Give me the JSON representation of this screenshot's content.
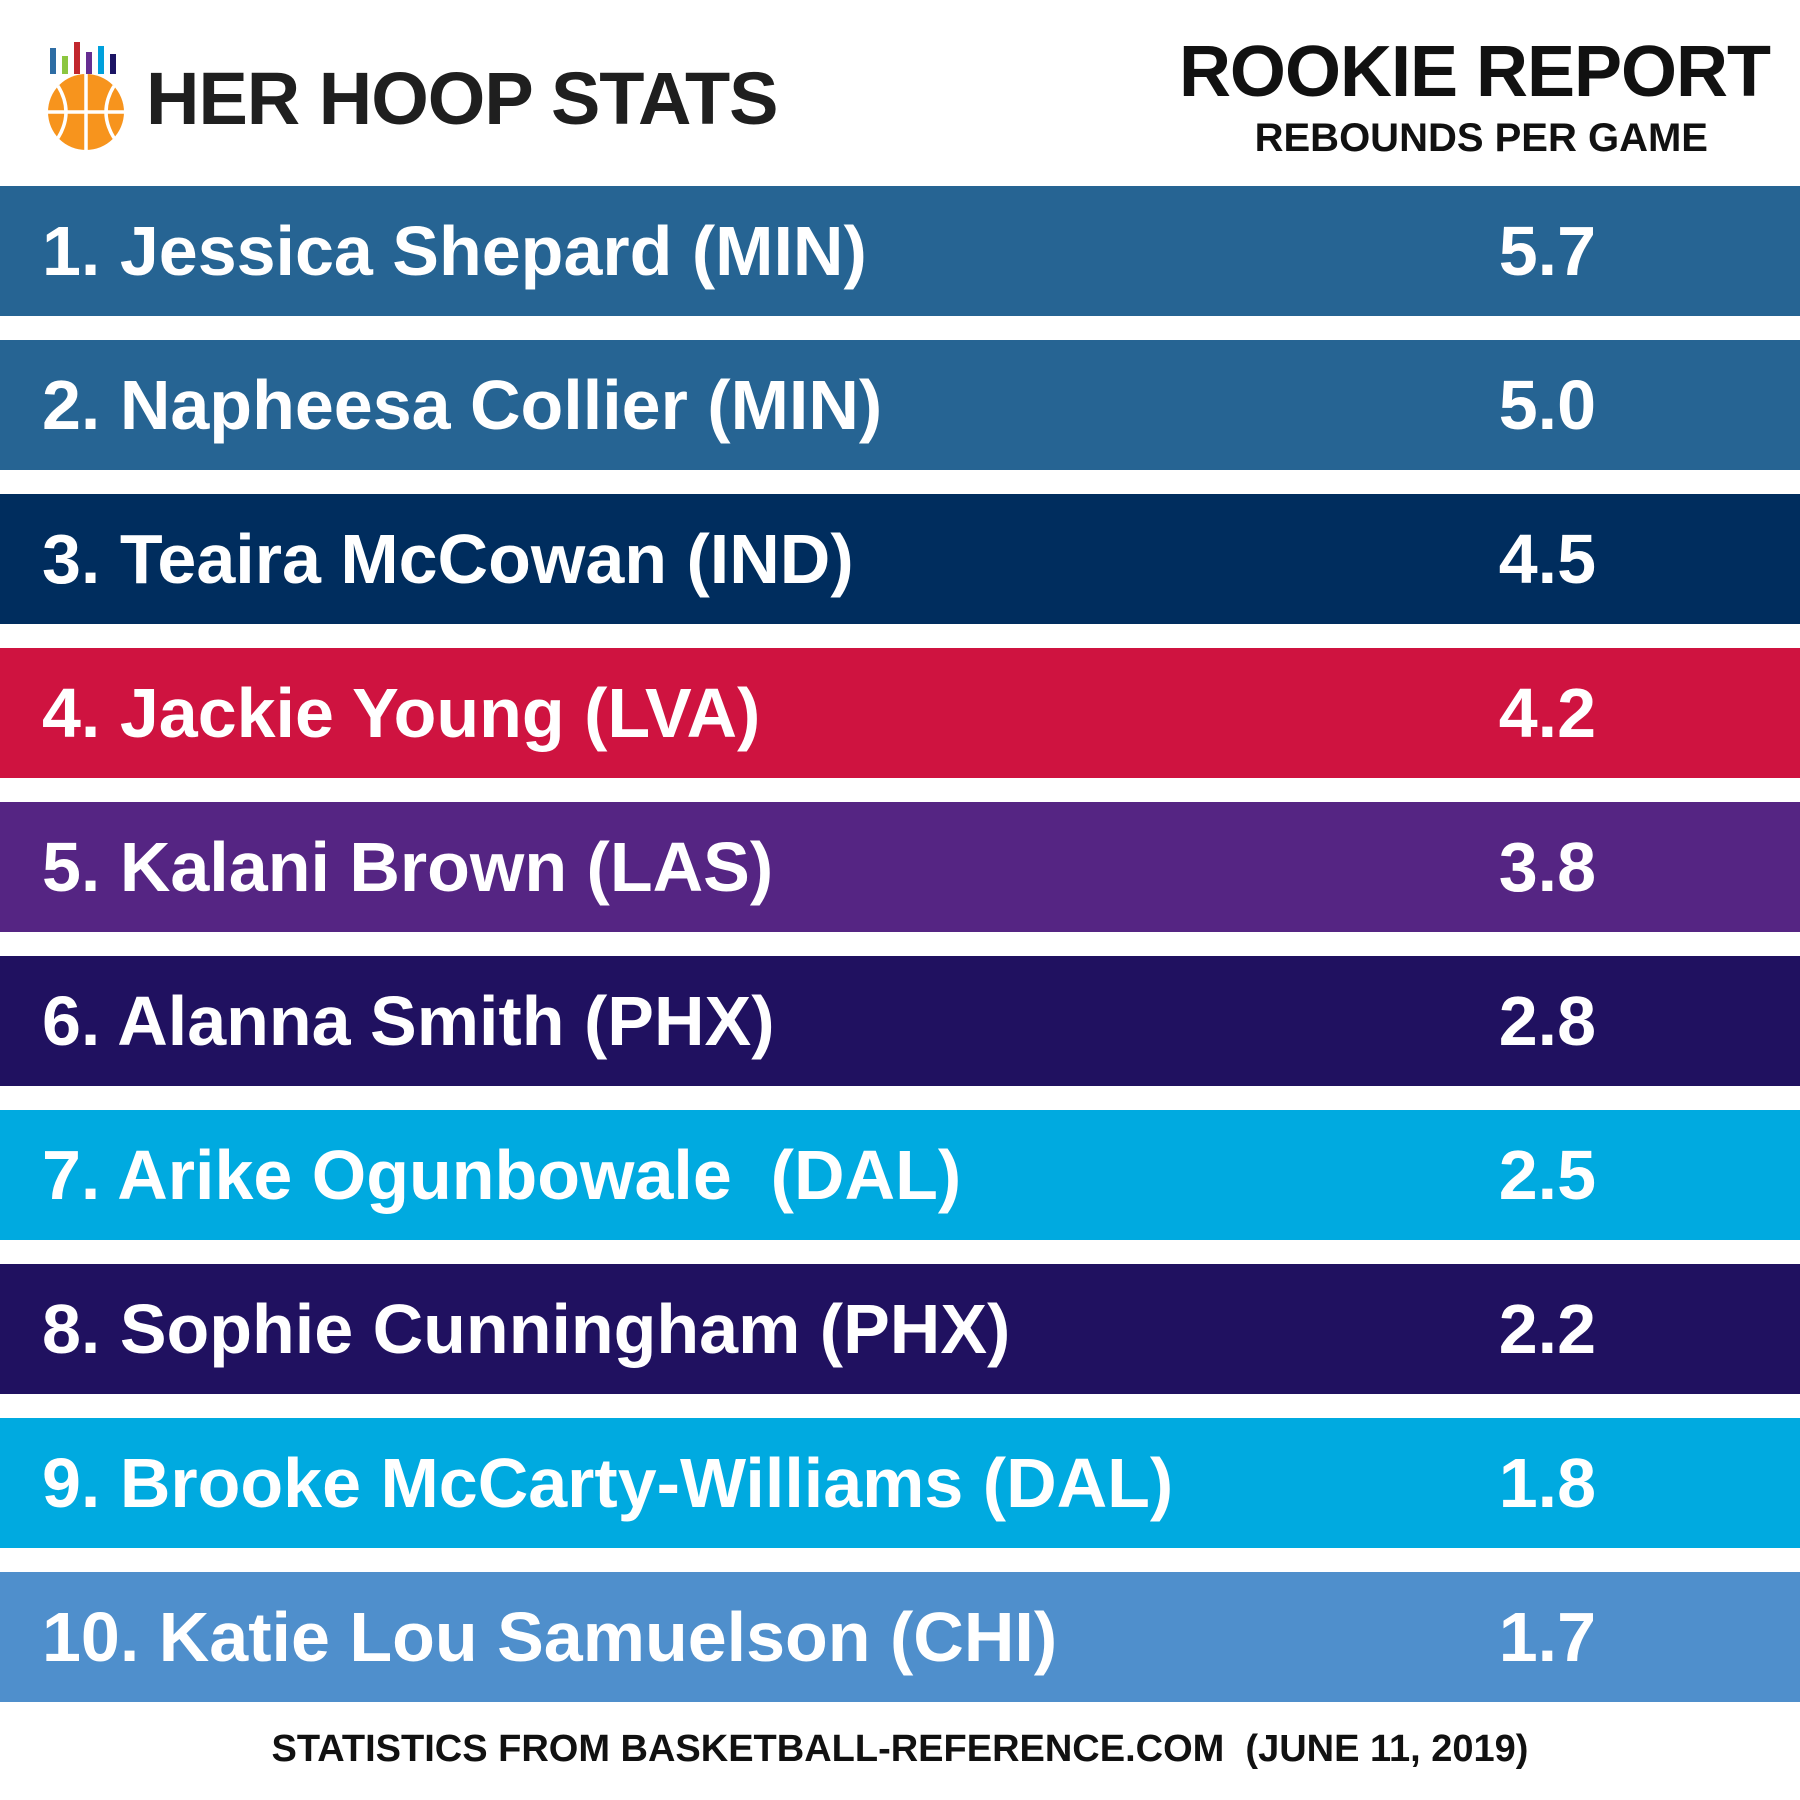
{
  "brand": {
    "name": "HER HOOP STATS",
    "logo_icon": "basketball-bar-chart-logo-icon",
    "colors": {
      "ball": "#f7941d",
      "bars": [
        "#2e6da4",
        "#8cc63f",
        "#c1272d",
        "#662d91",
        "#00a0dc",
        "#1b1464"
      ]
    }
  },
  "report": {
    "title": "ROOKIE REPORT",
    "subtitle": "REBOUNDS PER GAME"
  },
  "rankings": [
    {
      "label": "1. Jessica Shepard (MIN)",
      "value": "5.7",
      "color": "#266493"
    },
    {
      "label": "2. Napheesa Collier (MIN)",
      "value": "5.0",
      "color": "#266493"
    },
    {
      "label": "3. Teaira McCowan (IND)",
      "value": "4.5",
      "color": "#002d5e"
    },
    {
      "label": "4. Jackie Young (LVA)",
      "value": "4.2",
      "color": "#cf1340"
    },
    {
      "label": "5. Kalani Brown (LAS)",
      "value": "3.8",
      "color": "#552583"
    },
    {
      "label": "6. Alanna Smith (PHX)",
      "value": "2.8",
      "color": "#201160"
    },
    {
      "label": "7. Arike Ogunbowale  (DAL)",
      "value": "2.5",
      "color": "#00aae0"
    },
    {
      "label": "8. Sophie Cunningham (PHX)",
      "value": "2.2",
      "color": "#201160"
    },
    {
      "label": "9. Brooke McCarty-Williams (DAL)",
      "value": "1.8",
      "color": "#00aae0"
    },
    {
      "label": "10. Katie Lou Samuelson (CHI)",
      "value": "1.7",
      "color": "#4f8fcc"
    }
  ],
  "footer": {
    "source": "STATISTICS FROM BASKETBALL-REFERENCE.COM  (JUNE 11, 2019)"
  }
}
